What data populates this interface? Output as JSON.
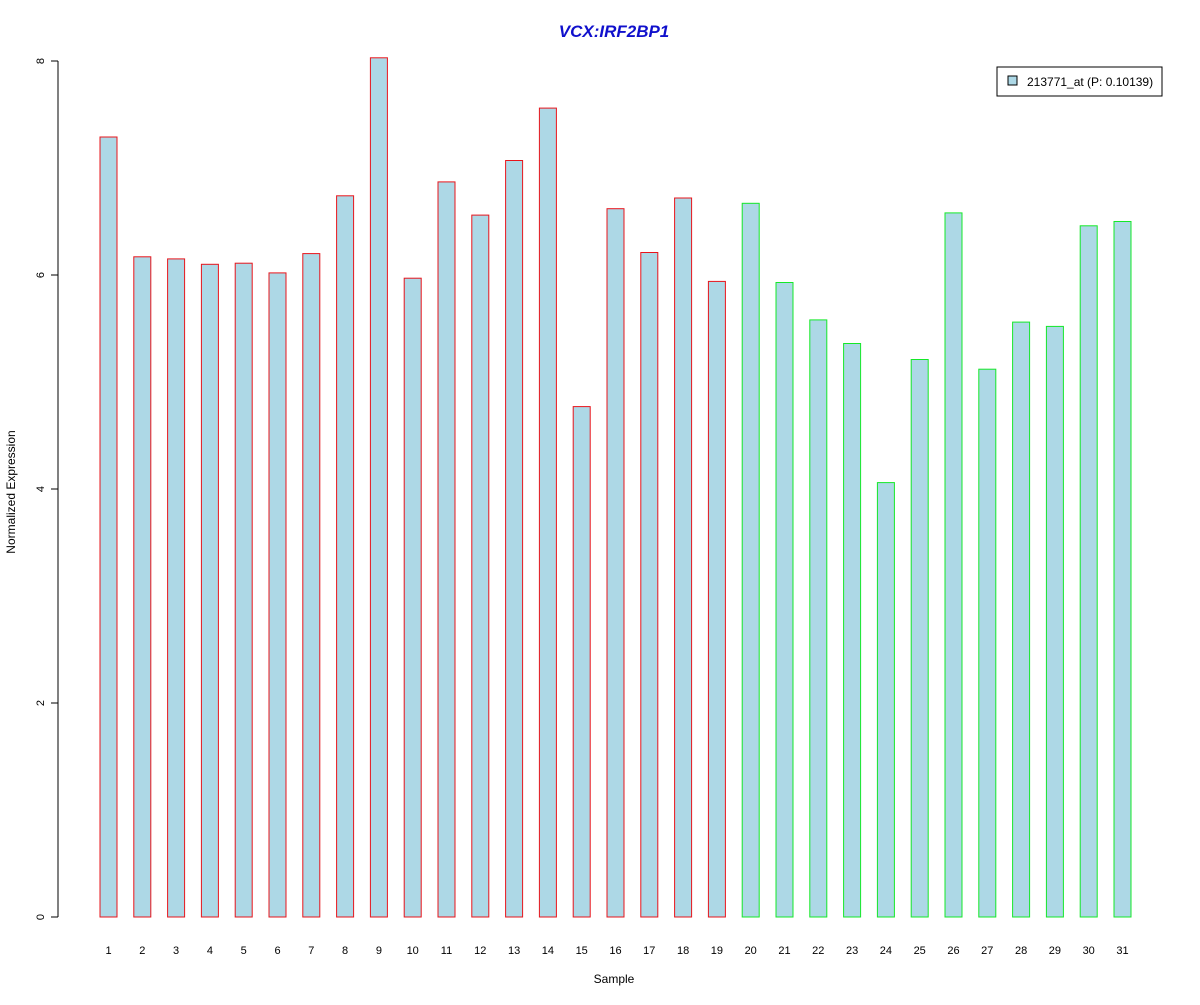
{
  "chart_data": {
    "type": "bar",
    "title": "VCX:IRF2BP1",
    "xlabel": "Sample",
    "ylabel": "Normalized Expression",
    "ylim": [
      0,
      8
    ],
    "yticks": [
      "0",
      "2",
      "4",
      "6",
      "8"
    ],
    "grid": false,
    "legend_position": "top-right",
    "categories": [
      "1",
      "2",
      "3",
      "4",
      "5",
      "6",
      "7",
      "8",
      "9",
      "10",
      "11",
      "12",
      "13",
      "14",
      "15",
      "16",
      "17",
      "18",
      "19",
      "20",
      "21",
      "22",
      "23",
      "24",
      "25",
      "26",
      "27",
      "28",
      "29",
      "30",
      "31"
    ],
    "series": [
      {
        "name": "213771_at (P: 0.10139)",
        "values": [
          7.29,
          6.17,
          6.15,
          6.1,
          6.11,
          6.02,
          6.2,
          6.74,
          8.03,
          5.97,
          6.87,
          6.56,
          7.07,
          7.56,
          4.77,
          6.62,
          6.21,
          6.72,
          5.94,
          6.67,
          5.93,
          5.58,
          5.36,
          4.06,
          5.21,
          6.58,
          5.12,
          5.56,
          5.52,
          6.46,
          6.5
        ]
      }
    ],
    "groups": [
      {
        "from": 1,
        "to": 19,
        "border_color": "#e8141b"
      },
      {
        "from": 20,
        "to": 31,
        "border_color": "#14e828"
      }
    ],
    "colors": {
      "bar_fill": "#add8e6",
      "title": "#1010cc",
      "axis": "#000000"
    }
  }
}
